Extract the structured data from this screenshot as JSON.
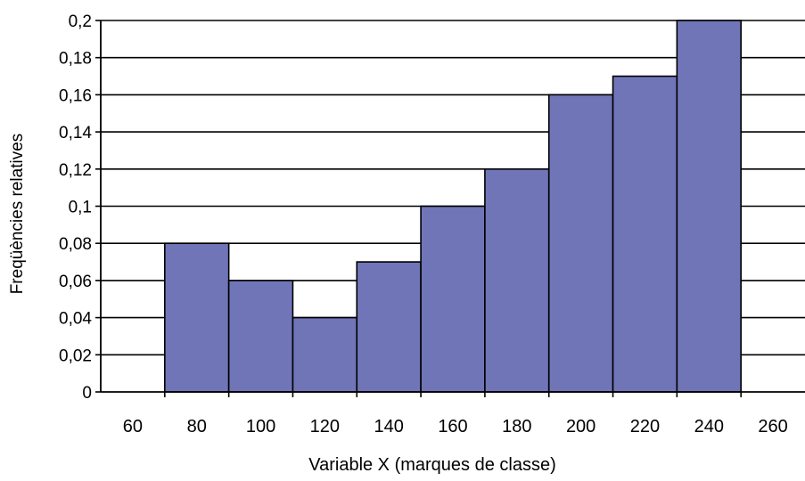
{
  "chart_data": {
    "type": "bar",
    "title": "",
    "xlabel": "Variable X (marques de classe)",
    "ylabel": "Freqüències relatives",
    "x_ticks": [
      "60",
      "80",
      "100",
      "120",
      "140",
      "160",
      "180",
      "200",
      "220",
      "240",
      "260"
    ],
    "y_ticks": [
      "0",
      "0,02",
      "0,04",
      "0,06",
      "0,08",
      "0,1",
      "0,12",
      "0,14",
      "0,16",
      "0,18",
      "0,2"
    ],
    "categories": [
      "80",
      "100",
      "120",
      "140",
      "160",
      "180",
      "200",
      "220",
      "240"
    ],
    "values": [
      0.08,
      0.06,
      0.04,
      0.07,
      0.1,
      0.12,
      0.16,
      0.17,
      0.2
    ],
    "xlim": [
      50,
      270
    ],
    "ylim": [
      0,
      0.2
    ],
    "grid": "horizontal",
    "bar_color": "#7075b8",
    "bar_edge_color": "#000000"
  }
}
